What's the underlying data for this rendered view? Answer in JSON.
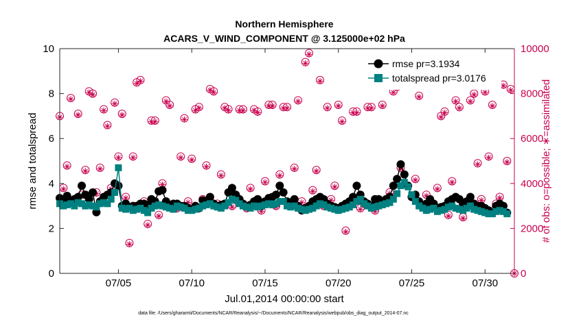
{
  "chart_data": {
    "type": "scatter",
    "title_line1": "Northern Hemisphere",
    "title_line2": "ACARS_V_WIND_COMPONENT @ 3.125000e+02 hPa",
    "xlabel": "Jul.01,2014 00:00:00 start",
    "ylabel_left": "rmse and totalspread",
    "ylabel_right": "# of obs: o=possible; ∗=assimilated",
    "footnote": "data file: /Users/gharamti/Documents/NCAR/Reanalysis/~/Documents/NCAR/Reanalysis/webpub/obs_diag_output_2014-07.nc",
    "x_range_days": [
      1,
      32
    ],
    "x_ticks": [
      {
        "day": 5,
        "label": "07/05"
      },
      {
        "day": 10,
        "label": "07/10"
      },
      {
        "day": 15,
        "label": "07/15"
      },
      {
        "day": 20,
        "label": "07/20"
      },
      {
        "day": 25,
        "label": "07/25"
      },
      {
        "day": 30,
        "label": "07/30"
      }
    ],
    "ylim_left": [
      0,
      10
    ],
    "yticks_left": [
      "0",
      "2",
      "4",
      "6",
      "8",
      "10"
    ],
    "ylim_right": [
      0,
      10000
    ],
    "yticks_right": [
      "0",
      "2000",
      "4000",
      "6000",
      "8000",
      "10000"
    ],
    "legend": {
      "position": "top-right",
      "entries": [
        "rmse pr=3.1934",
        "totalspread pr=3.0176"
      ]
    },
    "colors": {
      "rmse": "#000000",
      "totalspread": "#008080",
      "obs": "#c8004e"
    },
    "series": [
      {
        "name": "rmse",
        "x_day_start": 1,
        "x_step_days": 0.25,
        "values": [
          3.35,
          3.25,
          3.45,
          3.2,
          3.3,
          3.4,
          3.9,
          3.5,
          3.3,
          3.6,
          2.72,
          3.2,
          3.4,
          3.5,
          3.6,
          4.0,
          3.9,
          3.0,
          3.1,
          2.95,
          3.0,
          3.0,
          3.1,
          3.1,
          3.05,
          3.3,
          3.2,
          3.65,
          3.7,
          3.2,
          3.0,
          3.1,
          3.1,
          3.0,
          3.0,
          2.9,
          2.85,
          3.0,
          2.9,
          3.25,
          3.2,
          3.4,
          3.1,
          3.0,
          3.05,
          3.1,
          3.6,
          3.8,
          3.5,
          3.3,
          3.1,
          3.0,
          3.05,
          3.2,
          3.3,
          3.0,
          3.2,
          3.35,
          3.4,
          3.5,
          3.9,
          3.6,
          3.2,
          3.15,
          3.3,
          3.0,
          2.8,
          2.9,
          3.0,
          3.2,
          3.3,
          3.4,
          3.3,
          3.1,
          3.0,
          2.95,
          2.9,
          3.0,
          3.1,
          3.2,
          3.4,
          3.9,
          3.5,
          3.2,
          3.1,
          3.0,
          3.3,
          3.3,
          3.2,
          3.3,
          3.4,
          3.9,
          4.2,
          4.85,
          4.4,
          3.9,
          3.4,
          3.5,
          3.2,
          3.0,
          3.1,
          3.3,
          3.1,
          2.9,
          2.95,
          3.0,
          3.2,
          3.3,
          3.4,
          3.3,
          3.1,
          3.2,
          3.4,
          3.1,
          3.0,
          3.0,
          2.9,
          2.8,
          2.7,
          3.0,
          3.1,
          3.0,
          2.7
        ]
      },
      {
        "name": "totalspread",
        "x_day_start": 1,
        "x_step_days": 0.25,
        "values": [
          3.1,
          3.0,
          3.05,
          3.1,
          3.0,
          3.15,
          3.1,
          3.0,
          3.05,
          3.0,
          2.95,
          3.1,
          3.15,
          3.1,
          3.3,
          3.6,
          4.7,
          2.9,
          2.85,
          2.9,
          2.8,
          2.85,
          2.9,
          2.8,
          2.7,
          2.9,
          3.0,
          3.05,
          3.0,
          2.95,
          2.9,
          2.85,
          3.0,
          2.95,
          2.9,
          2.8,
          2.8,
          2.85,
          2.9,
          3.0,
          3.05,
          3.1,
          3.0,
          2.95,
          2.9,
          3.0,
          3.15,
          3.3,
          3.25,
          3.1,
          3.0,
          2.95,
          2.9,
          3.0,
          2.95,
          3.0,
          3.05,
          3.1,
          3.05,
          3.1,
          3.2,
          3.2,
          3.0,
          2.95,
          3.0,
          2.9,
          2.85,
          2.8,
          2.85,
          2.9,
          3.0,
          3.1,
          3.05,
          2.95,
          2.9,
          2.85,
          2.8,
          2.85,
          2.9,
          2.95,
          3.05,
          3.2,
          3.3,
          3.1,
          3.0,
          2.9,
          2.95,
          3.0,
          3.05,
          3.1,
          3.15,
          3.3,
          3.55,
          3.9,
          4.05,
          3.85,
          3.5,
          3.2,
          3.0,
          2.9,
          2.8,
          2.85,
          2.9,
          2.75,
          2.8,
          2.85,
          2.95,
          3.0,
          2.9,
          2.85,
          2.8,
          2.9,
          3.0,
          2.85,
          2.8,
          2.75,
          2.7,
          2.65,
          2.65,
          2.75,
          2.8,
          2.75,
          2.65
        ]
      },
      {
        "name": "obs_possible",
        "x_day_start": 1,
        "x_step_days": 0.25,
        "values": [
          7000,
          3800,
          4800,
          7800,
          3300,
          7100,
          3500,
          4600,
          8100,
          8000,
          3600,
          4700,
          7300,
          6600,
          3800,
          7600,
          5200,
          7100,
          3400,
          1350,
          5200,
          8500,
          8600,
          3200,
          2200,
          6800,
          6800,
          2600,
          4000,
          7700,
          7500,
          3000,
          2900,
          5200,
          6900,
          3200,
          5100,
          7300,
          7400,
          3300,
          4800,
          8200,
          8100,
          3100,
          4400,
          7400,
          7300,
          3000,
          3500,
          7300,
          7300,
          2900,
          3800,
          7300,
          7200,
          2800,
          4100,
          7500,
          7500,
          3000,
          4400,
          7400,
          7400,
          3000,
          4700,
          7700,
          3200,
          9400,
          9800,
          3700,
          4600,
          8600,
          3000,
          7400,
          3300,
          3900,
          7500,
          6800,
          1900,
          3100,
          7200,
          7200,
          2900,
          3100,
          7400,
          7400,
          2800,
          3200,
          7500,
          3200,
          3600,
          8100,
          8300,
          4700,
          8500,
          8600,
          3400,
          4200,
          7900,
          8400,
          3500,
          9000,
          3100,
          3800,
          7000,
          7200,
          2600,
          4100,
          7700,
          7400,
          2500,
          3000,
          7700,
          8000,
          4900,
          3300,
          8100,
          5200,
          7500,
          3100,
          3400,
          8400,
          5000,
          8200,
          0
        ]
      },
      {
        "name": "obs_assimilated",
        "x_day_start": 1,
        "x_step_days": 0.25,
        "values": [
          6950,
          3750,
          4750,
          7750,
          3250,
          7050,
          3450,
          4550,
          8050,
          7950,
          3550,
          4650,
          7250,
          6550,
          3750,
          7550,
          5150,
          7050,
          3350,
          1300,
          5150,
          8450,
          8550,
          3150,
          2150,
          6750,
          6750,
          2550,
          3950,
          7650,
          7450,
          2950,
          2850,
          5150,
          6850,
          3150,
          5050,
          7250,
          7350,
          3250,
          4750,
          8150,
          8050,
          3050,
          4350,
          7350,
          7250,
          2950,
          3450,
          7250,
          7250,
          2850,
          3750,
          7250,
          7150,
          2750,
          4050,
          7450,
          7450,
          2950,
          4350,
          7350,
          7350,
          2950,
          4650,
          7650,
          3150,
          9350,
          9750,
          3650,
          4550,
          8550,
          2950,
          7350,
          3250,
          3850,
          7450,
          6750,
          1850,
          3050,
          7150,
          7150,
          2850,
          3050,
          7350,
          7350,
          2750,
          3150,
          7450,
          3150,
          3550,
          8050,
          8250,
          4650,
          8450,
          8550,
          3350,
          4150,
          7850,
          8350,
          3450,
          8950,
          3050,
          3750,
          6950,
          7150,
          2550,
          4050,
          7650,
          7350,
          2450,
          2950,
          7650,
          7950,
          4850,
          3250,
          8050,
          5150,
          7450,
          3050,
          3350,
          8350,
          4950,
          8150,
          0
        ]
      }
    ]
  }
}
